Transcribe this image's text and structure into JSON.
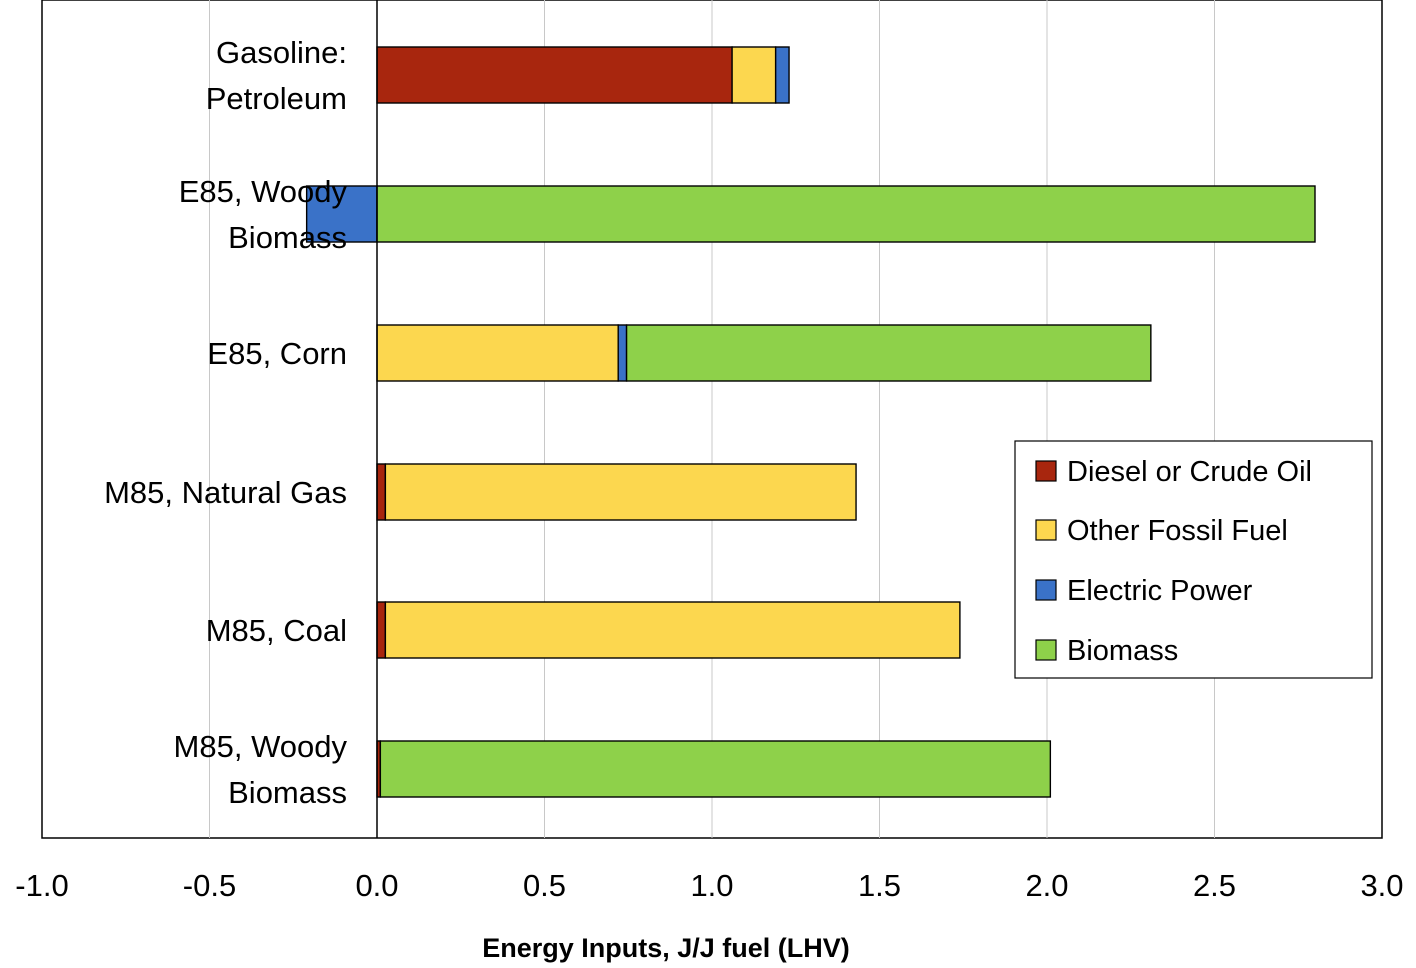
{
  "chart_data": {
    "type": "bar",
    "orientation": "horizontal",
    "stacked": true,
    "title": "",
    "xlabel": "Energy Inputs, J/J fuel (LHV)",
    "ylabel": "",
    "xlim": [
      -1.0,
      3.0
    ],
    "x_ticks": [
      "-1.0",
      "-0.5",
      "0.0",
      "0.5",
      "1.0",
      "1.5",
      "2.0",
      "2.5",
      "3.0"
    ],
    "grid": "vertical",
    "legend_position": "right",
    "categories": [
      [
        "Gasoline:",
        "Petroleum"
      ],
      [
        "E85, Woody",
        "Biomass"
      ],
      [
        "E85, Corn"
      ],
      [
        "M85, Natural Gas"
      ],
      [
        "M85, Coal"
      ],
      [
        "M85, Woody",
        "Biomass"
      ]
    ],
    "series": [
      {
        "name": "Diesel or Crude Oil",
        "color": "#a8260e",
        "values": [
          1.06,
          0.0,
          0.0,
          0.025,
          0.025,
          0.01
        ]
      },
      {
        "name": "Other Fossil Fuel",
        "color": "#fcd74f",
        "values": [
          0.13,
          0.0,
          0.72,
          1.405,
          1.715,
          0.0
        ]
      },
      {
        "name": "Electric Power",
        "color": "#3a72c8",
        "values": [
          0.04,
          -0.21,
          0.025,
          0.0,
          0.0,
          0.0
        ]
      },
      {
        "name": "Biomass",
        "color": "#8ed14a",
        "values": [
          0.0,
          2.8,
          1.565,
          0.0,
          0.0,
          2.0
        ]
      }
    ]
  }
}
